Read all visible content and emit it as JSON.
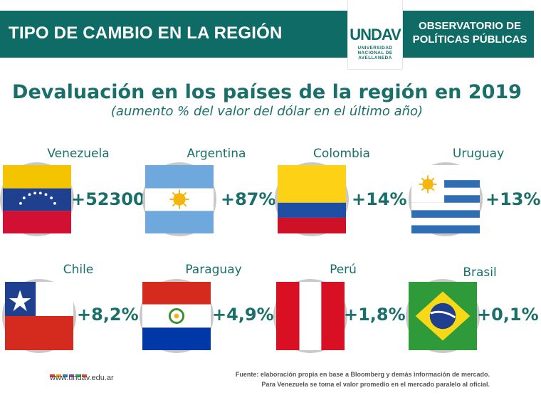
{
  "header": {
    "title": "TIPO DE CAMBIO EN LA REGIÓN",
    "logo_mark": "UNDAV",
    "logo_lines": [
      "UNIVERSIDAD",
      "NACIONAL DE",
      "AVELLANEDA"
    ],
    "observatorio_line1": "OBSERVATORIO DE",
    "observatorio_line2": "POLÍTICAS PÚBLICAS",
    "bar_color": "#0f6b66"
  },
  "main": {
    "title": "Devaluación en los países de la región en 2019",
    "subtitle": "(aumento % del valor del dólar en el último año)"
  },
  "countries": [
    {
      "name": "Venezuela",
      "value": "+52300%"
    },
    {
      "name": "Argentina",
      "value": "+87%"
    },
    {
      "name": "Colombia",
      "value": "+14%"
    },
    {
      "name": "Uruguay",
      "value": "+13%"
    },
    {
      "name": "Chile",
      "value": "+8,2%"
    },
    {
      "name": "Paraguay",
      "value": "+4,9%"
    },
    {
      "name": "Perú",
      "value": "+1,8%"
    },
    {
      "name": "Brasil",
      "value": "+0,1%"
    }
  ],
  "footer": {
    "website": "www.undav.edu.ar",
    "dot_colors": [
      "#e03c31",
      "#f39c12",
      "#2e86c1",
      "#8e44ad",
      "#27ae60",
      "#e74c3c"
    ],
    "source_line1": "Fuente: elaboración propia en base a Bloomberg y demás información de mercado.",
    "source_line2": "Para Venezuela se toma el valor promedio en el mercado paralelo al oficial."
  }
}
